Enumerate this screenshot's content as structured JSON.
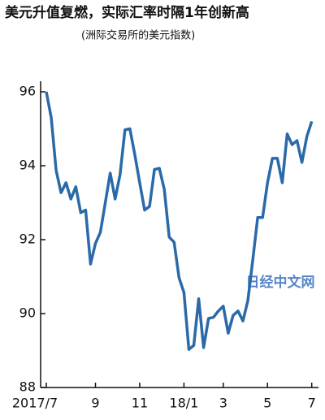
{
  "chart_data": {
    "type": "line",
    "title": "美元升值复燃，实际汇率时隔1年创新高",
    "subtitle": "(洲际交易所的美元指数)",
    "watermark": "日经中文网",
    "categories": [
      "2017/7",
      null,
      null,
      null,
      null,
      null,
      null,
      null,
      null,
      null,
      "9",
      null,
      null,
      null,
      null,
      null,
      null,
      null,
      null,
      "11",
      null,
      null,
      null,
      null,
      null,
      null,
      null,
      null,
      "18/1",
      null,
      null,
      null,
      null,
      null,
      null,
      null,
      "3",
      null,
      null,
      null,
      null,
      null,
      null,
      null,
      null,
      "5",
      null,
      null,
      null,
      null,
      null,
      null,
      null,
      null,
      "7"
    ],
    "values": [
      96.0,
      95.3,
      93.87,
      93.27,
      93.54,
      93.1,
      93.43,
      92.73,
      92.8,
      91.34,
      91.9,
      92.2,
      93.0,
      93.8,
      93.1,
      93.76,
      94.97,
      95.0,
      94.3,
      93.54,
      92.8,
      92.9,
      93.9,
      93.93,
      93.36,
      92.07,
      91.93,
      90.97,
      90.57,
      89.03,
      89.14,
      90.4,
      89.08,
      89.87,
      89.9,
      90.07,
      90.2,
      89.47,
      89.95,
      90.07,
      89.8,
      90.35,
      91.45,
      92.6,
      92.6,
      93.54,
      94.2,
      94.2,
      93.54,
      94.86,
      94.57,
      94.68,
      94.09,
      94.79,
      95.2
    ],
    "color": "#2a6aa8",
    "ylim": [
      88,
      96
    ],
    "yticks": [
      88,
      90,
      92,
      94,
      96
    ]
  }
}
